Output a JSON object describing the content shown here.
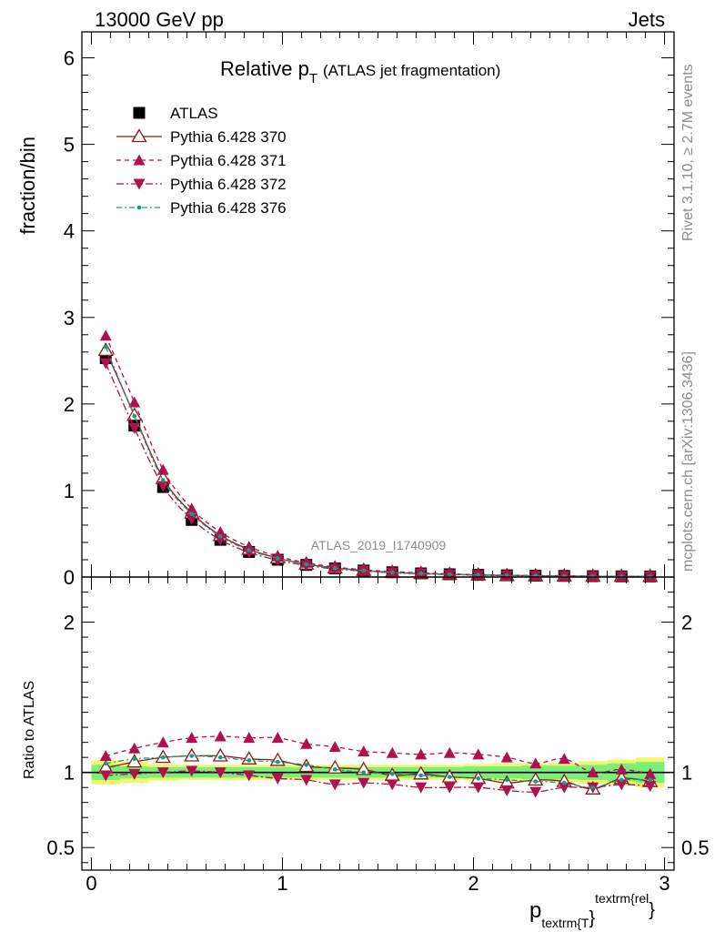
{
  "header": {
    "left": "13000 GeV pp",
    "right": "Jets"
  },
  "side_text": {
    "rivet": "Rivet 3.1.10, ≥ 2.7M events",
    "mcplots": "mcplots.cern.ch [arXiv:1306.3436]"
  },
  "colors": {
    "atlas": "#000000",
    "p370": "#8b1a1a",
    "p371": "#b0104e",
    "p372": "#b0104e",
    "p376": "#1a9a7a",
    "band_inner": "#7af07a",
    "band_outer": "#f5f56a"
  },
  "chart_data": [
    {
      "type": "scatter",
      "panel": "main",
      "title_main": "Relative p",
      "title_sub": "T",
      "title_rest": "(ATLAS jet fragmentation)",
      "analysis_label": "ATLAS_2019_I1740909",
      "ylabel": "fraction/bin",
      "xlim": [
        -0.05,
        3.05
      ],
      "ylim": [
        0,
        6.3
      ],
      "y_ticks": [
        "0",
        "1",
        "2",
        "3",
        "4",
        "5",
        "6"
      ],
      "x": [
        0.075,
        0.225,
        0.375,
        0.525,
        0.675,
        0.825,
        0.975,
        1.125,
        1.275,
        1.425,
        1.575,
        1.725,
        1.875,
        2.025,
        2.175,
        2.325,
        2.475,
        2.625,
        2.775,
        2.925
      ],
      "legend": [
        "ATLAS",
        "Pythia 6.428 370",
        "Pythia 6.428 371",
        "Pythia 6.428 372",
        "Pythia 6.428 376"
      ],
      "series": [
        {
          "name": "ATLAS",
          "values": [
            2.53,
            1.75,
            1.04,
            0.66,
            0.43,
            0.29,
            0.2,
            0.14,
            0.1,
            0.075,
            0.055,
            0.042,
            0.032,
            0.025,
            0.02,
            0.016,
            0.013,
            0.01,
            0.008,
            0.007
          ]
        },
        {
          "name": "Pythia 6.428 370",
          "values": [
            2.62,
            1.87,
            1.14,
            0.74,
            0.48,
            0.32,
            0.22,
            0.15,
            0.105,
            0.078,
            0.054,
            0.041,
            0.031,
            0.024,
            0.018,
            0.015,
            0.012,
            0.009,
            0.0075,
            0.0065
          ]
        },
        {
          "name": "Pythia 6.428 371",
          "values": [
            2.79,
            2.02,
            1.24,
            0.79,
            0.52,
            0.35,
            0.24,
            0.165,
            0.115,
            0.085,
            0.063,
            0.048,
            0.037,
            0.028,
            0.022,
            0.017,
            0.014,
            0.01,
            0.0082,
            0.007
          ]
        },
        {
          "name": "Pythia 6.428 372",
          "values": [
            2.47,
            1.72,
            1.05,
            0.67,
            0.43,
            0.285,
            0.195,
            0.135,
            0.093,
            0.07,
            0.05,
            0.038,
            0.029,
            0.022,
            0.017,
            0.014,
            0.011,
            0.009,
            0.0073,
            0.0063
          ]
        },
        {
          "name": "Pythia 6.428 376",
          "values": [
            2.66,
            1.86,
            1.12,
            0.73,
            0.47,
            0.31,
            0.215,
            0.148,
            0.103,
            0.075,
            0.054,
            0.041,
            0.031,
            0.024,
            0.019,
            0.015,
            0.012,
            0.0092,
            0.0076,
            0.0066
          ]
        }
      ]
    },
    {
      "type": "line",
      "panel": "ratio",
      "ylabel": "Ratio to ATLAS",
      "xlabel_main": "p",
      "xlabel_sub": "textrm{T",
      "xlabel_sup": "textrm{rel",
      "xlabel_close": "}",
      "xlim": [
        -0.05,
        3.05
      ],
      "ylim": [
        0.35,
        2.3
      ],
      "y_ticks": [
        "0.5",
        "1",
        "2"
      ],
      "x_ticks": [
        "0",
        "1",
        "2",
        "3"
      ],
      "x": [
        0.075,
        0.225,
        0.375,
        0.525,
        0.675,
        0.825,
        0.975,
        1.125,
        1.275,
        1.425,
        1.575,
        1.725,
        1.875,
        2.025,
        2.175,
        2.325,
        2.475,
        2.625,
        2.775,
        2.925
      ],
      "band_inner_halfwidth": [
        0.05,
        0.04,
        0.035,
        0.035,
        0.035,
        0.035,
        0.035,
        0.035,
        0.035,
        0.035,
        0.035,
        0.035,
        0.035,
        0.04,
        0.04,
        0.045,
        0.045,
        0.05,
        0.06,
        0.07
      ],
      "band_outer_halfwidth": [
        0.08,
        0.07,
        0.055,
        0.05,
        0.05,
        0.05,
        0.05,
        0.05,
        0.05,
        0.05,
        0.05,
        0.05,
        0.05,
        0.055,
        0.06,
        0.06,
        0.065,
        0.075,
        0.085,
        0.1
      ],
      "series": [
        {
          "name": "Pythia 6.428 370",
          "values": [
            1.03,
            1.07,
            1.1,
            1.11,
            1.11,
            1.09,
            1.08,
            1.04,
            1.03,
            1.02,
            0.98,
            0.99,
            0.97,
            0.96,
            0.93,
            0.95,
            0.94,
            0.89,
            0.96,
            0.94
          ]
        },
        {
          "name": "Pythia 6.428 371",
          "values": [
            1.11,
            1.16,
            1.2,
            1.23,
            1.24,
            1.23,
            1.23,
            1.19,
            1.17,
            1.14,
            1.13,
            1.12,
            1.13,
            1.12,
            1.1,
            1.06,
            1.09,
            1.0,
            1.02,
            0.99
          ]
        },
        {
          "name": "Pythia 6.428 372",
          "values": [
            0.98,
            0.99,
            1.0,
            1.01,
            1.0,
            0.98,
            0.96,
            0.95,
            0.92,
            0.93,
            0.92,
            0.9,
            0.9,
            0.9,
            0.88,
            0.87,
            0.9,
            0.9,
            0.92,
            0.91
          ]
        },
        {
          "name": "Pythia 6.428 376",
          "values": [
            1.06,
            1.09,
            1.1,
            1.11,
            1.1,
            1.08,
            1.07,
            1.05,
            1.02,
            1.0,
            0.99,
            0.98,
            0.97,
            0.96,
            0.95,
            0.94,
            0.93,
            0.9,
            0.95,
            0.95
          ]
        }
      ]
    }
  ]
}
